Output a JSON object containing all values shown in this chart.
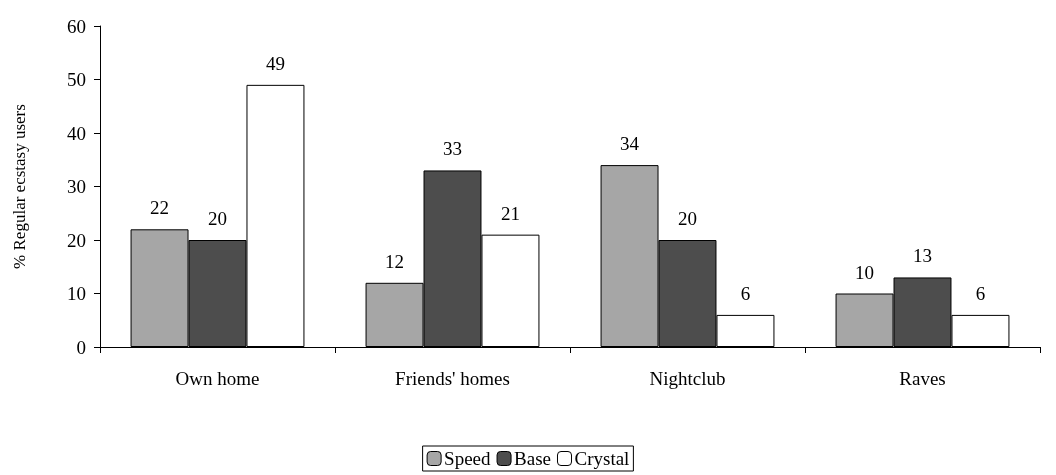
{
  "chart_data": {
    "type": "bar",
    "ylabel": "% Regular ecstasy users",
    "categories": [
      "Own home",
      "Friends' homes",
      "Nightclub",
      "Raves"
    ],
    "series": [
      {
        "name": "Speed",
        "color": "#a6a6a6",
        "values": [
          22,
          12,
          34,
          10
        ]
      },
      {
        "name": "Base",
        "color": "#4d4d4d",
        "values": [
          20,
          33,
          20,
          13
        ]
      },
      {
        "name": "Crystal",
        "color": "#ffffff",
        "values": [
          49,
          21,
          6,
          6
        ]
      }
    ],
    "ylim": [
      0,
      60
    ],
    "yticks": [
      0,
      10,
      20,
      30,
      40,
      50,
      60
    ],
    "grid": false,
    "legend": "bottom",
    "data_labels": true
  }
}
